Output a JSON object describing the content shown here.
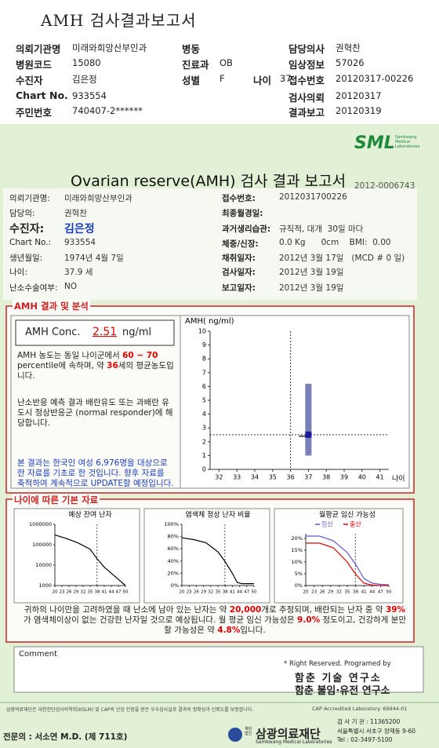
{
  "header": {
    "title": "AMH 검사결과보고서",
    "fields": [
      {
        "label": "의뢰기관명",
        "value": "미래와희망산부인과"
      },
      {
        "label": "병동"
      },
      {
        "label": "담당의사",
        "value": "권혁찬"
      },
      {
        "label": "병원코드",
        "value": "15080"
      },
      {
        "label": "진료과",
        "value": "OB"
      },
      {
        "label": "임상정보",
        "value": "57026"
      },
      {
        "label": "수진자",
        "value": "김은정"
      },
      {
        "label": "성별",
        "value": "F"
      },
      {
        "label": "나이",
        "value": "37"
      },
      {
        "label": "접수번호",
        "value": "20120317-00226"
      },
      {
        "label": "Chart No.",
        "value": "933554"
      },
      {
        "label": "검사의뢰",
        "value": "20120317"
      },
      {
        "label": "주민번호",
        "value": "740407-2******"
      },
      {
        "label": "결과보고",
        "value": "20120319"
      }
    ]
  },
  "report": {
    "logo": "SML",
    "logo_sub": "Samkwang Medical Laboratories",
    "title": "Ovarian reserve(AMH) 검사 결과 보고서",
    "number": "2012-0006743",
    "patient_left": [
      {
        "label": "의뢰기관명:",
        "value": "미래와희망산부인과"
      },
      {
        "label": "담당의:",
        "value": "권혁찬"
      },
      {
        "label": "수진자:",
        "value": "김은정"
      },
      {
        "label": "Chart No.:",
        "value": "933554"
      },
      {
        "label": "생년월일:",
        "value": "1974년 4월 7일"
      },
      {
        "label": "나이:",
        "value": "37.9 세"
      },
      {
        "label": "난소수술여부:",
        "value": "NO"
      }
    ],
    "patient_right": [
      {
        "label": "접수번호:",
        "value": "2012031700226"
      },
      {
        "label": "최종월경일:"
      },
      {
        "label": "과거생리습관:",
        "value": "규칙적, 대개  30일 마다"
      },
      {
        "label": "체중/신장:",
        "value": "0.0 Kg      0cm    BMI:  0.00"
      },
      {
        "label": "채취일자:",
        "value": "2012년 3월 17일   (MCD # 0 일)"
      },
      {
        "label": "검사일자:",
        "value": "2012년 3월 19일"
      },
      {
        "label": "보고일자:",
        "value": "2012년 3월 19일"
      }
    ],
    "amh_title": "AMH 결과 및 분석",
    "conc_label": "AMH Conc.",
    "conc_unit": "ng/ml",
    "text1": [
      {
        "text": "AMH 농도는 동일 나이군에서 "
      },
      {
        "text": "60 ~ 70",
        "color": "#e00000"
      },
      {
        "text": " percentile에 속하며, 약 "
      },
      {
        "text": "36",
        "color": "#e00000"
      },
      {
        "text": "세의 평균농도입니다."
      }
    ],
    "text2": "난소반응 예측 결과 배란유도 또는 과배란 유도시 정상반응군 (normal responder)에 해당합니다.",
    "text3": "본 결과는 한국인 여성 6,976명을 대상으로 한 자료를 기초로 한 것입니다. 향후 자료를 축적하여 계속적으로 UPDATE할 예정입니다.",
    "age_title": "나이에 따른 기본 자료",
    "summary": [
      {
        "text": "귀하의 나이만을 고려하였을 때 난소에 남아 있는 난자는 약 "
      },
      {
        "text": "20,000",
        "color": "#e00000"
      },
      {
        "text": "개로 추정되며, 배란되는 난자 중 약 "
      },
      {
        "text": "39%",
        "color": "#e00000"
      },
      {
        "text": "가 염색체이상이 없는 건강한 난자일 것으로 예상됩니다. 월 평균 임신 가능성은 "
      },
      {
        "text": "9.0%",
        "color": "#e00000"
      },
      {
        "text": " 정도이고, 건강하게 분만할 가능성은 약 "
      },
      {
        "text": "4.8%",
        "color": "#e00000"
      },
      {
        "text": "입니다."
      }
    ],
    "comment": "Comment",
    "rights": "* Right Reserved. Programed by",
    "lab1": "함춘 기술 연구소",
    "lab2": "함춘 불임·유전 연구소",
    "note": "삼광의료재단은 대한진단검사의학회(KSLM) 및 CAP의 신임 인증을 받은 우수검사실로 결과의 정확성과 신뢰도를 보증합니다.",
    "cap": "CAP Accredited Laboratory. 69944-01",
    "doctor": "전문의 : 서소연 M.D. (제 711호)",
    "foundation_prefix": "재단법인",
    "foundation": "삼광의료재단",
    "foundation_en": "Samkwang Medical Laboratories",
    "address": [
      "검 사 기 관 : 11365200",
      "서울특별시 서초구 양재동 9-60",
      "Tel : 02-3497-5100"
    ]
  },
  "amh_chart": {
    "type": "range",
    "y_label": "AMH( ng/ml)",
    "x_label": "나이",
    "xlim": [
      31.5,
      41.5
    ],
    "xticks": [
      32,
      33,
      34,
      35,
      36,
      37,
      38,
      39,
      40,
      41
    ],
    "ylim": [
      0,
      10
    ],
    "yticks": [
      0,
      1,
      2,
      3,
      4,
      5,
      6,
      7,
      8,
      9,
      10
    ],
    "x": 37,
    "low": 1.0,
    "high": 6.2,
    "value": 2.51,
    "ref_x": 36,
    "color": "#7a7fb8",
    "marker_color": "#1a1aa0"
  },
  "age_charts": [
    {
      "type": "line",
      "title": "예상 잔여 난자",
      "log_scale": true,
      "x": [
        20,
        25,
        30,
        35,
        38,
        41,
        44,
        47,
        50
      ],
      "series": [
        {
          "color": "#000000",
          "values": [
            300000,
            200000,
            120000,
            60000,
            20000,
            8000,
            4000,
            2000,
            1000
          ]
        }
      ],
      "xlim": [
        20,
        50
      ],
      "xticks": [
        20,
        23,
        26,
        29,
        32,
        35,
        38,
        41,
        44,
        47,
        50
      ],
      "ylim": [
        1000,
        1000000
      ],
      "yticks": [
        1000,
        10000,
        100000,
        1000000
      ],
      "marker_x": 37.9
    },
    {
      "type": "line",
      "title": "염색체 정상 난자 비율",
      "x": [
        20,
        25,
        30,
        35,
        38,
        41,
        43,
        45,
        50
      ],
      "series": [
        {
          "color": "#000000",
          "values": [
            78,
            75,
            70,
            55,
            39,
            20,
            5,
            3,
            3
          ]
        }
      ],
      "xlim": [
        20,
        50
      ],
      "xticks": [
        20,
        23,
        26,
        29,
        32,
        35,
        38,
        41,
        44,
        47,
        50
      ],
      "ylim": [
        0,
        100
      ],
      "yticks": [
        {
          "value": 0,
          "label": "0%"
        },
        {
          "value": 20,
          "label": "20%"
        },
        {
          "value": 40,
          "label": "40%"
        },
        {
          "value": 60,
          "label": "60%"
        },
        {
          "value": 80,
          "label": "80%"
        },
        {
          "value": 100,
          "label": "100%"
        }
      ],
      "marker_x": 37.9
    },
    {
      "type": "line",
      "title": "월평균 임신 가능성",
      "x": [
        20,
        25,
        30,
        35,
        38,
        41,
        44,
        47,
        50
      ],
      "series": [
        {
          "name": "임신",
          "color": "#5a5ad0",
          "values": [
            21,
            21,
            19,
            14,
            9,
            3,
            1,
            0.5,
            0.3
          ]
        },
        {
          "name": "출산",
          "color": "#e00000",
          "values": [
            18,
            18,
            16,
            10,
            4.8,
            1,
            0.2,
            0,
            0
          ]
        }
      ],
      "xlim": [
        20,
        50
      ],
      "xticks": [
        20,
        23,
        26,
        29,
        32,
        35,
        38,
        41,
        44,
        47,
        50
      ],
      "ylim": [
        0,
        22
      ],
      "yticks": [
        {
          "value": 0,
          "label": "0%"
        },
        {
          "value": 5,
          "label": "5%"
        },
        {
          "value": 10,
          "label": "10%"
        },
        {
          "value": 15,
          "label": "15%"
        },
        {
          "value": 20,
          "label": "20%"
        }
      ],
      "marker_x": 37.9
    }
  ]
}
